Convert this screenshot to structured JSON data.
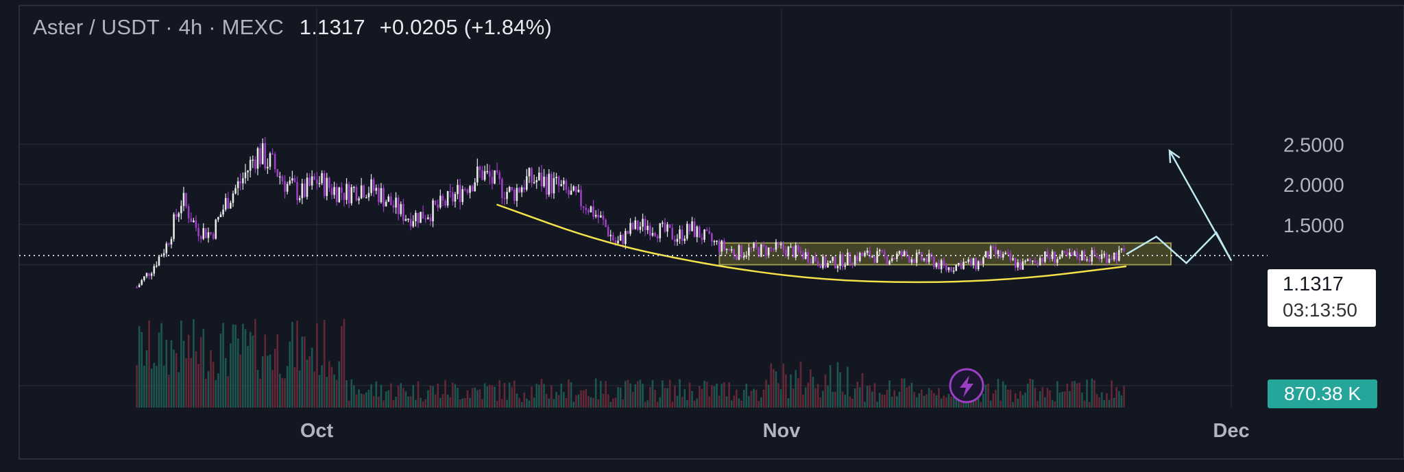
{
  "header": {
    "symbol": "Aster / USDT · 4h · MEXC",
    "last_price": "1.1317",
    "change": "+0.0205 (+1.84%)"
  },
  "price_tag": {
    "price": "1.1317",
    "countdown": "03:13:50"
  },
  "volume_tag": {
    "value": "870.38 K"
  },
  "colors": {
    "background": "#131722",
    "grid": "#232734",
    "bull_candle": "#e8e8e8",
    "bear_candle": "#9c3fc4",
    "curve": "#f5e24a",
    "range_box": "#6b6a2c",
    "projection": "#bfe9f2",
    "volume_up": "#1f5c55",
    "volume_down": "#6b2a38",
    "volume_badge": "#26a69a",
    "lightning_icon": "#9c3fc4"
  },
  "chart_data": {
    "type": "candlestick",
    "title": "",
    "xlabel": "",
    "ylabel": "",
    "x_ticks": [
      "Oct",
      "Nov",
      "Dec"
    ],
    "y_ticks": [
      "1.5000",
      "2.0000",
      "2.5000"
    ],
    "ylim": [
      0.42,
      2.85
    ],
    "grid": true,
    "current_price": 1.1317,
    "price_series": [
      {
        "t": "Sep 19",
        "v": 0.72
      },
      {
        "t": "Sep 20",
        "v": 0.95
      },
      {
        "t": "Sep 21",
        "v": 1.25
      },
      {
        "t": "Sep 22",
        "v": 1.82
      },
      {
        "t": "Sep 23",
        "v": 1.45
      },
      {
        "t": "Sep 24",
        "v": 1.38
      },
      {
        "t": "Sep 25",
        "v": 1.8
      },
      {
        "t": "Sep 26",
        "v": 2.05
      },
      {
        "t": "Sep 27",
        "v": 2.4
      },
      {
        "t": "Sep 28",
        "v": 2.25
      },
      {
        "t": "Sep 29",
        "v": 2.0
      },
      {
        "t": "Sep 30",
        "v": 1.88
      },
      {
        "t": "Oct 1",
        "v": 2.05
      },
      {
        "t": "Oct 2",
        "v": 1.95
      },
      {
        "t": "Oct 3",
        "v": 1.9
      },
      {
        "t": "Oct 4",
        "v": 1.98
      },
      {
        "t": "Oct 5",
        "v": 1.92
      },
      {
        "t": "Oct 6",
        "v": 1.75
      },
      {
        "t": "Oct 7",
        "v": 1.6
      },
      {
        "t": "Oct 8",
        "v": 1.62
      },
      {
        "t": "Oct 9",
        "v": 1.7
      },
      {
        "t": "Oct 10",
        "v": 1.82
      },
      {
        "t": "Oct 11",
        "v": 2.0
      },
      {
        "t": "Oct 12",
        "v": 2.15
      },
      {
        "t": "Oct 13",
        "v": 2.0
      },
      {
        "t": "Oct 14",
        "v": 1.88
      },
      {
        "t": "Oct 15",
        "v": 2.05
      },
      {
        "t": "Oct 16",
        "v": 2.05
      },
      {
        "t": "Oct 17",
        "v": 1.98
      },
      {
        "t": "Oct 18",
        "v": 1.85
      },
      {
        "t": "Oct 19",
        "v": 1.75
      },
      {
        "t": "Oct 20",
        "v": 1.55
      },
      {
        "t": "Oct 21",
        "v": 1.25
      },
      {
        "t": "Oct 22",
        "v": 1.45
      },
      {
        "t": "Oct 23",
        "v": 1.5
      },
      {
        "t": "Oct 24",
        "v": 1.42
      },
      {
        "t": "Oct 25",
        "v": 1.35
      },
      {
        "t": "Oct 26",
        "v": 1.45
      },
      {
        "t": "Oct 27",
        "v": 1.32
      },
      {
        "t": "Oct 28",
        "v": 1.22
      },
      {
        "t": "Oct 29",
        "v": 1.15
      },
      {
        "t": "Oct 30",
        "v": 1.18
      },
      {
        "t": "Oct 31",
        "v": 1.18
      },
      {
        "t": "Nov 1",
        "v": 1.2
      },
      {
        "t": "Nov 2",
        "v": 1.15
      },
      {
        "t": "Nov 3",
        "v": 1.1
      },
      {
        "t": "Nov 4",
        "v": 1.0
      },
      {
        "t": "Nov 5",
        "v": 1.05
      },
      {
        "t": "Nov 6",
        "v": 1.1
      },
      {
        "t": "Nov 7",
        "v": 1.12
      },
      {
        "t": "Nov 8",
        "v": 1.08
      },
      {
        "t": "Nov 9",
        "v": 1.12
      },
      {
        "t": "Nov 10",
        "v": 1.08
      },
      {
        "t": "Nov 11",
        "v": 1.05
      },
      {
        "t": "Nov 12",
        "v": 0.95
      },
      {
        "t": "Nov 13",
        "v": 1.02
      },
      {
        "t": "Nov 14",
        "v": 1.0
      },
      {
        "t": "Nov 15",
        "v": 1.15
      },
      {
        "t": "Nov 16",
        "v": 1.08
      },
      {
        "t": "Nov 17",
        "v": 0.98
      },
      {
        "t": "Nov 18",
        "v": 1.08
      },
      {
        "t": "Nov 19",
        "v": 1.1
      },
      {
        "t": "Nov 20",
        "v": 1.08
      },
      {
        "t": "Nov 21",
        "v": 1.12
      },
      {
        "t": "Nov 22",
        "v": 1.1
      },
      {
        "t": "Nov 23",
        "v": 1.12
      },
      {
        "t": "Nov 24",
        "v": 1.13
      }
    ],
    "volume_note": "volume histogram below price",
    "range_box": {
      "from": "Oct 29",
      "to": "Dec 1",
      "low": 1.0,
      "high": 1.27
    },
    "rounded_bottom_curve": [
      {
        "t": "Oct 13",
        "v": 1.75
      },
      {
        "t": "Oct 20",
        "v": 1.28
      },
      {
        "t": "Oct 27",
        "v": 1.0
      },
      {
        "t": "Nov 3",
        "v": 0.82
      },
      {
        "t": "Nov 10",
        "v": 0.77
      },
      {
        "t": "Nov 17",
        "v": 0.82
      },
      {
        "t": "Nov 24",
        "v": 0.98
      }
    ],
    "projection_path": [
      {
        "t": "Nov 24",
        "v": 1.13
      },
      {
        "t": "Nov 26",
        "v": 1.35
      },
      {
        "t": "Nov 28",
        "v": 1.02
      },
      {
        "t": "Nov 30",
        "v": 1.4
      },
      {
        "t": "Dec 1",
        "v": 1.05
      },
      {
        "t": "Dec 4",
        "v": 2.42
      }
    ]
  }
}
